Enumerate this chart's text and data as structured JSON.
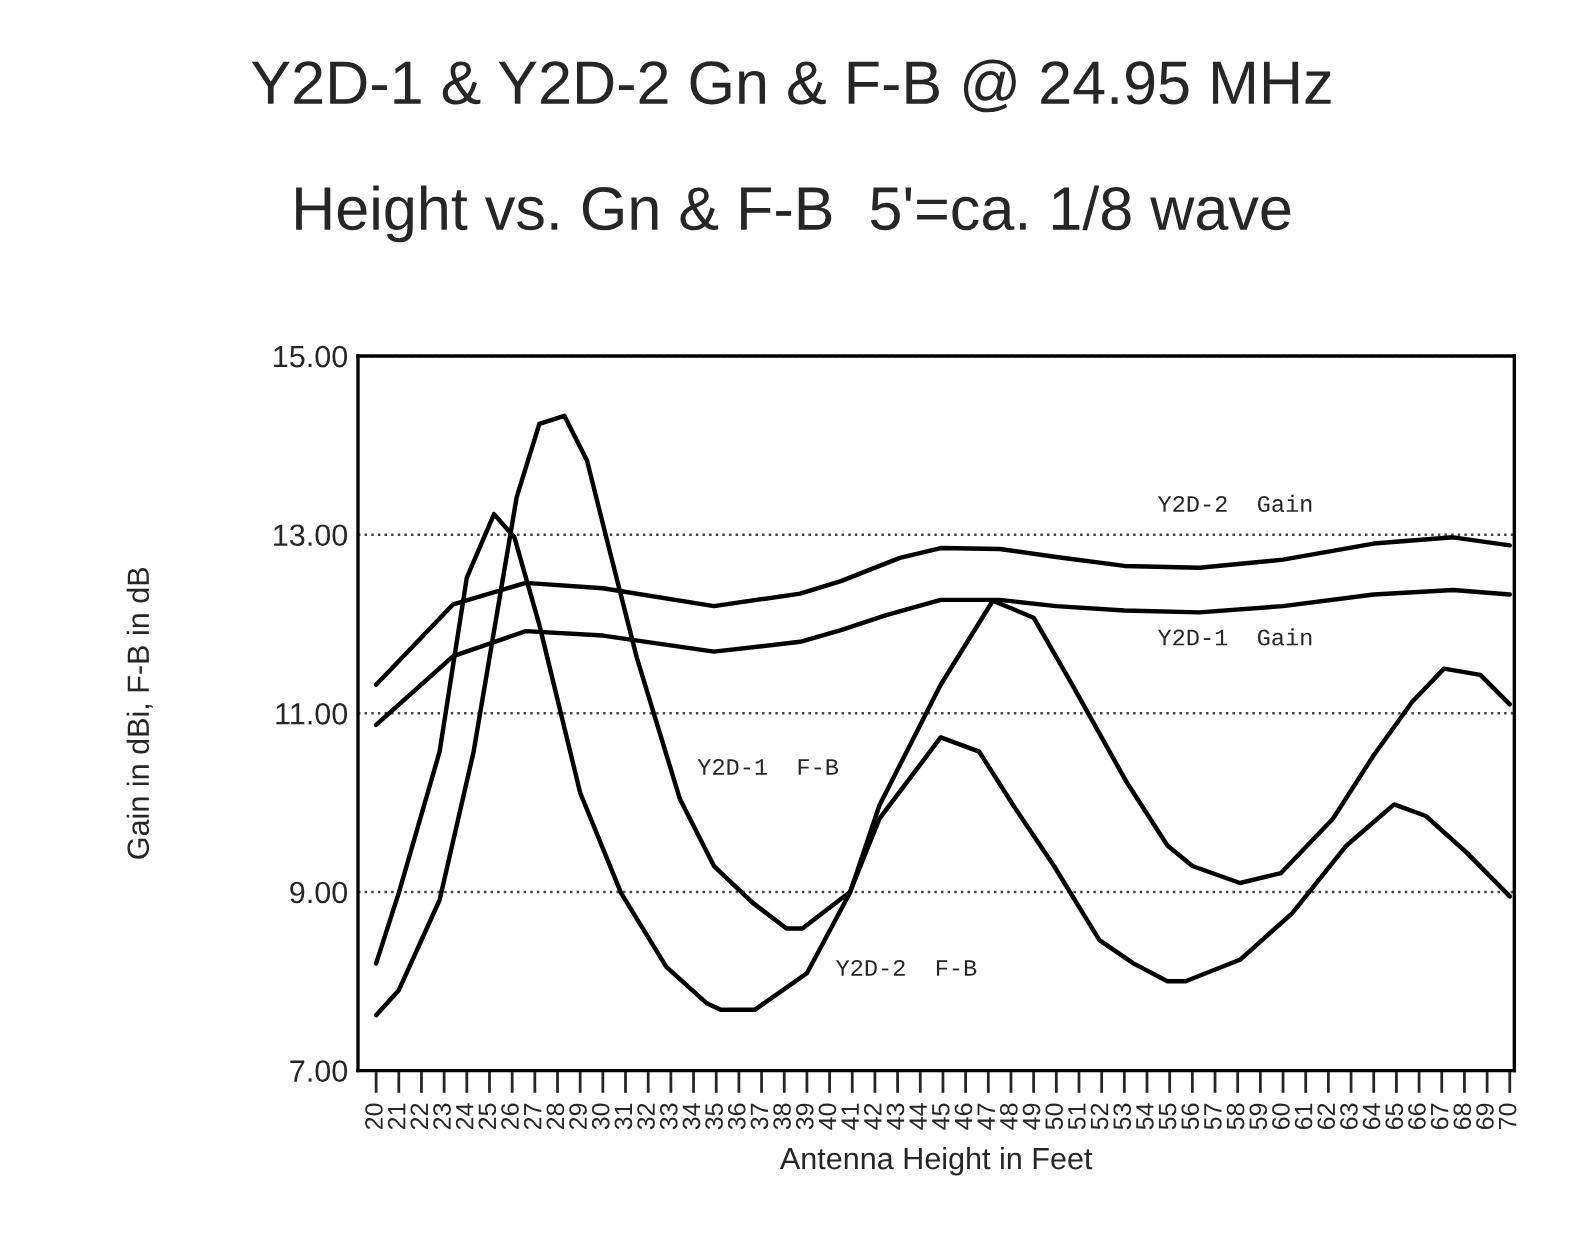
{
  "chart_data": {
    "type": "line",
    "title": "Y2D-1 & Y2D-2 Gn & F-B @ 24.95 MHz",
    "subtitle": "Height vs. Gn & F-B  5'=ca. 1/8 wave",
    "xlabel": "Antenna Height in Feet",
    "ylabel": "Gain in dBi, F-B in dB",
    "xlim": [
      19.2,
      70.2
    ],
    "ylim": [
      7,
      15
    ],
    "xticks": [
      20,
      21,
      22,
      23,
      24,
      25,
      26,
      27,
      28,
      29,
      30,
      31,
      32,
      33,
      34,
      35,
      36,
      37,
      38,
      39,
      40,
      41,
      42,
      43,
      44,
      45,
      46,
      47,
      48,
      49,
      50,
      51,
      52,
      53,
      54,
      55,
      56,
      57,
      58,
      59,
      60,
      61,
      62,
      63,
      64,
      65,
      66,
      67,
      68,
      69,
      70
    ],
    "yticks": [
      {
        "value": 7,
        "label": "7.00"
      },
      {
        "value": 9,
        "label": "9.00"
      },
      {
        "value": 11,
        "label": "11.00"
      },
      {
        "value": 13,
        "label": "13.00"
      },
      {
        "value": 15,
        "label": "15.00"
      }
    ],
    "grid": "y",
    "marker": "none",
    "line_style": "solid",
    "series": [
      {
        "color": "#000000",
        "x": [
          20,
          23.4,
          26.6,
          30,
          34.9,
          38.7,
          40.5,
          43.1,
          44.9,
          47.5,
          50,
          53,
          56.3,
          60,
          64,
          67.5,
          70
        ],
        "values": [
          11.32,
          12.22,
          12.46,
          12.4,
          12.2,
          12.34,
          12.48,
          12.74,
          12.85,
          12.84,
          12.75,
          12.65,
          12.63,
          12.72,
          12.9,
          12.97,
          12.88
        ]
      },
      {
        "color": "#000000",
        "x": [
          20,
          23.4,
          26.6,
          30,
          34.9,
          38.7,
          40.5,
          42.5,
          44.9,
          47.5,
          50,
          53,
          56.3,
          60,
          64,
          67.5,
          70
        ],
        "values": [
          10.87,
          11.64,
          11.92,
          11.87,
          11.69,
          11.8,
          11.93,
          12.1,
          12.27,
          12.27,
          12.2,
          12.15,
          12.13,
          12.2,
          12.33,
          12.38,
          12.33
        ]
      },
      {
        "color": "#000000",
        "x": [
          20,
          21,
          22.8,
          24,
          25.2,
          26.1,
          27.2,
          29,
          30.8,
          32.8,
          34.6,
          35.2,
          36.7,
          39,
          40.9,
          42.2,
          44.9,
          47.2,
          49,
          50.7,
          53.1,
          54.9,
          56,
          58.1,
          59.9,
          62.2,
          64,
          65.7,
          67.1,
          68.7,
          70
        ],
        "values": [
          8.2,
          8.99,
          10.57,
          12.52,
          13.23,
          12.97,
          11.99,
          10.11,
          8.99,
          8.16,
          7.75,
          7.68,
          7.68,
          8.09,
          8.99,
          9.97,
          11.32,
          12.26,
          12.07,
          11.32,
          10.23,
          9.52,
          9.29,
          9.1,
          9.21,
          9.82,
          10.53,
          11.13,
          11.5,
          11.43,
          11.1
        ]
      },
      {
        "color": "#000000",
        "x": [
          20,
          21,
          22.8,
          24.3,
          25.3,
          26.2,
          27.2,
          28.3,
          29.3,
          30.3,
          31.5,
          33.4,
          34.9,
          36.6,
          38.1,
          38.8,
          40.9,
          42.2,
          44.9,
          46.6,
          48.1,
          49.9,
          51.9,
          53.4,
          54.9,
          55.7,
          58.1,
          60.4,
          62.8,
          64.9,
          66.3,
          68.1,
          70
        ],
        "values": [
          7.62,
          7.9,
          8.91,
          10.57,
          12.07,
          13.42,
          14.24,
          14.33,
          13.83,
          12.82,
          11.62,
          10.04,
          9.29,
          8.88,
          8.59,
          8.59,
          9.0,
          9.82,
          10.73,
          10.57,
          9.97,
          9.29,
          8.46,
          8.2,
          8.0,
          8.0,
          8.24,
          8.76,
          9.52,
          9.98,
          9.85,
          9.44,
          8.95
        ]
      }
    ],
    "annotations": [
      {
        "text": "Y2D-2  Gain",
        "x": 57.9,
        "y": 12.64
      },
      {
        "text": "Y2D-1  Gain",
        "x": 57.9,
        "y": 12.14
      },
      {
        "text": "Y2D-1  F-B",
        "x": 33.0,
        "y": 10.38
      },
      {
        "text": "Y2D-2  F-B",
        "x": 39.1,
        "y": 8.13
      }
    ]
  }
}
